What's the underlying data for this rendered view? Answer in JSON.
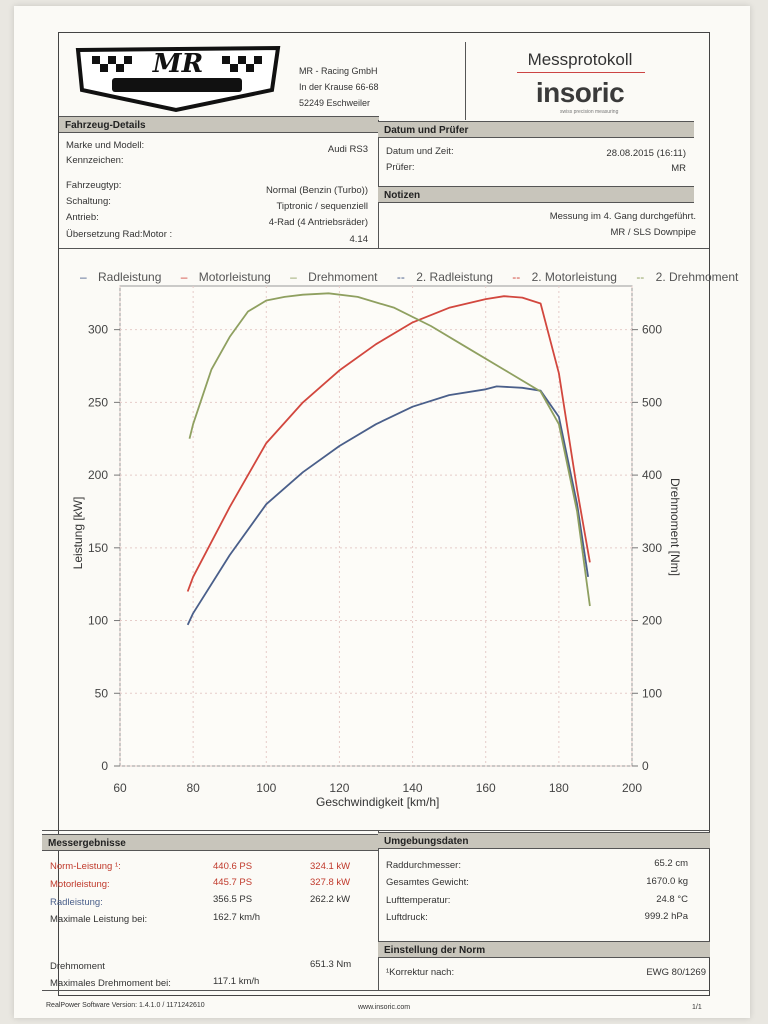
{
  "header": {
    "company_name": "MR - Racing GmbH",
    "company_street": "In der Krause 66-68",
    "company_city": "52249 Eschweiler",
    "doc_title": "Messprotokoll",
    "brand": "insoric",
    "brand_tagline": "swiss precision measuring"
  },
  "vehicle": {
    "title": "Fahrzeug-Details",
    "make_model_label": "Marke und Modell:",
    "make_model": "Audi RS3",
    "plate_label": "Kennzeichen:",
    "type_label": "Fahrzeugtyp:",
    "type": "Normal (Benzin (Turbo))",
    "shift_label": "Schaltung:",
    "shift": "Tiptronic / sequenziell",
    "drive_label": "Antrieb:",
    "drive": "4-Rad (4 Antriebsräder)",
    "ratio_label": "Übersetzung Rad:Motor :",
    "ratio": "4.14"
  },
  "date_tester": {
    "title": "Datum und Prüfer",
    "datetime_label": "Datum und Zeit:",
    "datetime": "28.08.2015 (16:11)",
    "tester_label": "Prüfer:",
    "tester": "MR"
  },
  "notes": {
    "title": "Notizen",
    "line1": "Messung im 4. Gang durchgeführt.",
    "line2": "MR / SLS  Downpipe"
  },
  "results": {
    "title": "Messergebnisse",
    "norm_label": "Norm-Leistung ¹:",
    "norm_ps": "440.6 PS",
    "norm_kw": "324.1 kW",
    "motor_label": "Motorleistung:",
    "motor_ps": "445.7 PS",
    "motor_kw": "327.8 kW",
    "wheel_label": "Radleistung:",
    "wheel_ps": "356.5 PS",
    "wheel_kw": "262.2 kW",
    "maxpower_at_label": "Maximale Leistung bei:",
    "maxpower_at": "162.7 km/h",
    "torque_label": "Drehmoment",
    "torque": "651.3 Nm",
    "maxtorque_at_label": "Maximales Drehmoment bei:",
    "maxtorque_at": "117.1 km/h"
  },
  "environment": {
    "title": "Umgebungsdaten",
    "wheel_diam_label": "Raddurchmesser:",
    "wheel_diam": "65.2 cm",
    "weight_label": "Gesamtes Gewicht:",
    "weight": "1670.0 kg",
    "air_temp_label": "Lufttemperatur:",
    "air_temp": "24.8 °C",
    "air_pressure_label": "Luftdruck:",
    "air_pressure": "999.2 hPa"
  },
  "norm_setting": {
    "title": "Einstellung der Norm",
    "correction_label": "¹Korrektur nach:",
    "correction": "EWG 80/1269"
  },
  "footer": {
    "software": "RealPower Software Version: 1.4.1.0 / 1171242610",
    "website": "www.insoric.com",
    "page": "1/1"
  },
  "chart_data": {
    "type": "line",
    "legend": [
      "Radleistung",
      "Motorleistung",
      "Drehmoment",
      "2. Radleistung",
      "2. Motorleistung",
      "2. Drehmoment"
    ],
    "xlabel": "Geschwindigkeit [km/h]",
    "ylabel": "Leistung [kW]",
    "y2label": "Drehmoment [Nm]",
    "xlim": [
      60,
      200
    ],
    "ylim": [
      0,
      330
    ],
    "y2lim": [
      0,
      660
    ],
    "xticks": [
      "60",
      "80",
      "100",
      "120",
      "140",
      "160",
      "180",
      "200"
    ],
    "yticks": [
      "0",
      "50",
      "100",
      "150",
      "200",
      "250",
      "300"
    ],
    "y2ticks": [
      "0",
      "100",
      "200",
      "300",
      "400",
      "500",
      "600"
    ],
    "colors": {
      "Radleistung": "#4a5f8a",
      "Motorleistung": "#d2473e",
      "Drehmoment": "#8fa060"
    },
    "series": [
      {
        "name": "Radleistung",
        "x": [
          78.5,
          80,
          90,
          100,
          110,
          120,
          130,
          140,
          150,
          160,
          163,
          170,
          175,
          180,
          185,
          188
        ],
        "values": [
          97,
          105,
          145,
          180,
          202,
          220,
          235,
          247,
          255,
          259,
          261,
          260,
          258,
          240,
          180,
          130
        ]
      },
      {
        "name": "Motorleistung",
        "x": [
          78.5,
          80,
          90,
          100,
          110,
          120,
          130,
          140,
          150,
          160,
          165,
          170,
          175,
          180,
          185,
          188.5
        ],
        "values": [
          120,
          130,
          178,
          222,
          250,
          272,
          290,
          305,
          315,
          321,
          323,
          322,
          318,
          270,
          190,
          140
        ]
      },
      {
        "name": "Drehmoment",
        "x": [
          79,
          80,
          85,
          90,
          95,
          100,
          105,
          110,
          117,
          125,
          135,
          145,
          155,
          165,
          175,
          180,
          185,
          188.5
        ],
        "values": [
          450,
          470,
          545,
          590,
          625,
          640,
          645,
          648,
          650,
          645,
          630,
          605,
          575,
          545,
          515,
          470,
          350,
          220
        ]
      }
    ]
  }
}
